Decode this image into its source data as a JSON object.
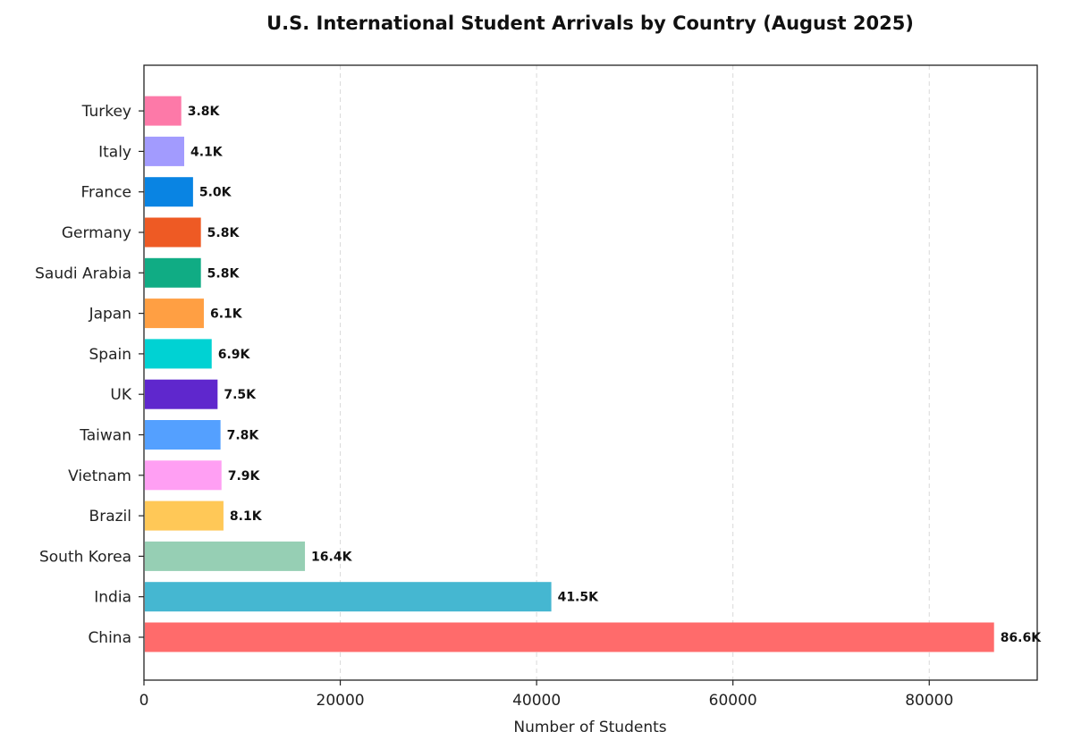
{
  "chart_data": {
    "type": "bar",
    "orientation": "horizontal",
    "title": "U.S. International Student Arrivals by Country (August 2025)",
    "xlabel": "Number of Students",
    "ylabel": "",
    "xlim": [
      0,
      91000
    ],
    "x_ticks": [
      0,
      20000,
      40000,
      60000,
      80000
    ],
    "x_tick_labels": [
      "0",
      "20000",
      "40000",
      "60000",
      "80000"
    ],
    "grid": "x-dashed",
    "categories": [
      "China",
      "India",
      "South Korea",
      "Brazil",
      "Vietnam",
      "Taiwan",
      "UK",
      "Spain",
      "Japan",
      "Saudi Arabia",
      "Germany",
      "France",
      "Italy",
      "Turkey"
    ],
    "values": [
      86600,
      41500,
      16400,
      8100,
      7900,
      7800,
      7500,
      6900,
      6100,
      5800,
      5800,
      5000,
      4100,
      3800
    ],
    "data_labels": [
      "86.6K",
      "41.5K",
      "16.4K",
      "8.1K",
      "7.9K",
      "7.8K",
      "7.5K",
      "6.9K",
      "6.1K",
      "5.8K",
      "5.8K",
      "5.0K",
      "4.1K",
      "3.8K"
    ],
    "colors": [
      "#ff6b6b",
      "#45b7d1",
      "#96cfb4",
      "#ffc857",
      "#ff9ff3",
      "#54a0ff",
      "#5f27cd",
      "#00d2d3",
      "#ff9f43",
      "#10ac84",
      "#ee5a24",
      "#0984e3",
      "#a29bfe",
      "#fd79a8"
    ]
  }
}
